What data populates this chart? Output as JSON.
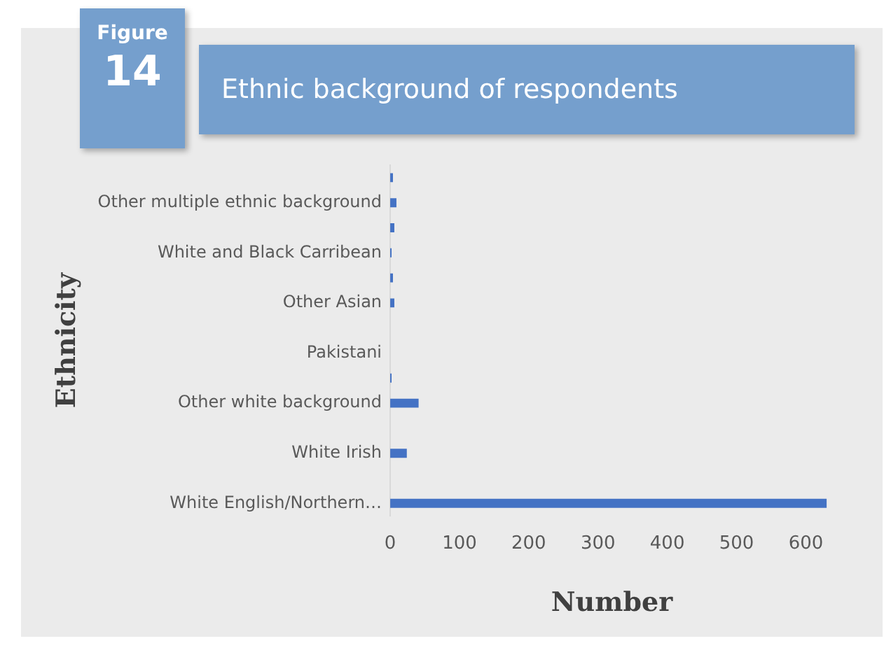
{
  "chart_data": {
    "type": "bar",
    "orientation": "horizontal",
    "title": "Ethnic background of respondents",
    "annotations": [
      "Figure",
      "14"
    ],
    "xlabel": "Number",
    "ylabel": "Ethnicity",
    "categories": [
      null,
      "Other multiple ethnic background",
      null,
      "White and Black Carribean",
      null,
      "Other Asian",
      null,
      "Pakistani",
      null,
      "Other white background",
      null,
      "White Irish",
      null,
      "White English/Northern…"
    ],
    "values": [
      4,
      9,
      6,
      2,
      4,
      6,
      null,
      null,
      2,
      41,
      null,
      24,
      null,
      630
    ],
    "color": "#4472c4",
    "xlim": [
      0,
      640
    ],
    "xticks": [
      0,
      100,
      200,
      300,
      400,
      500,
      600
    ],
    "grid": false,
    "legend": false
  }
}
